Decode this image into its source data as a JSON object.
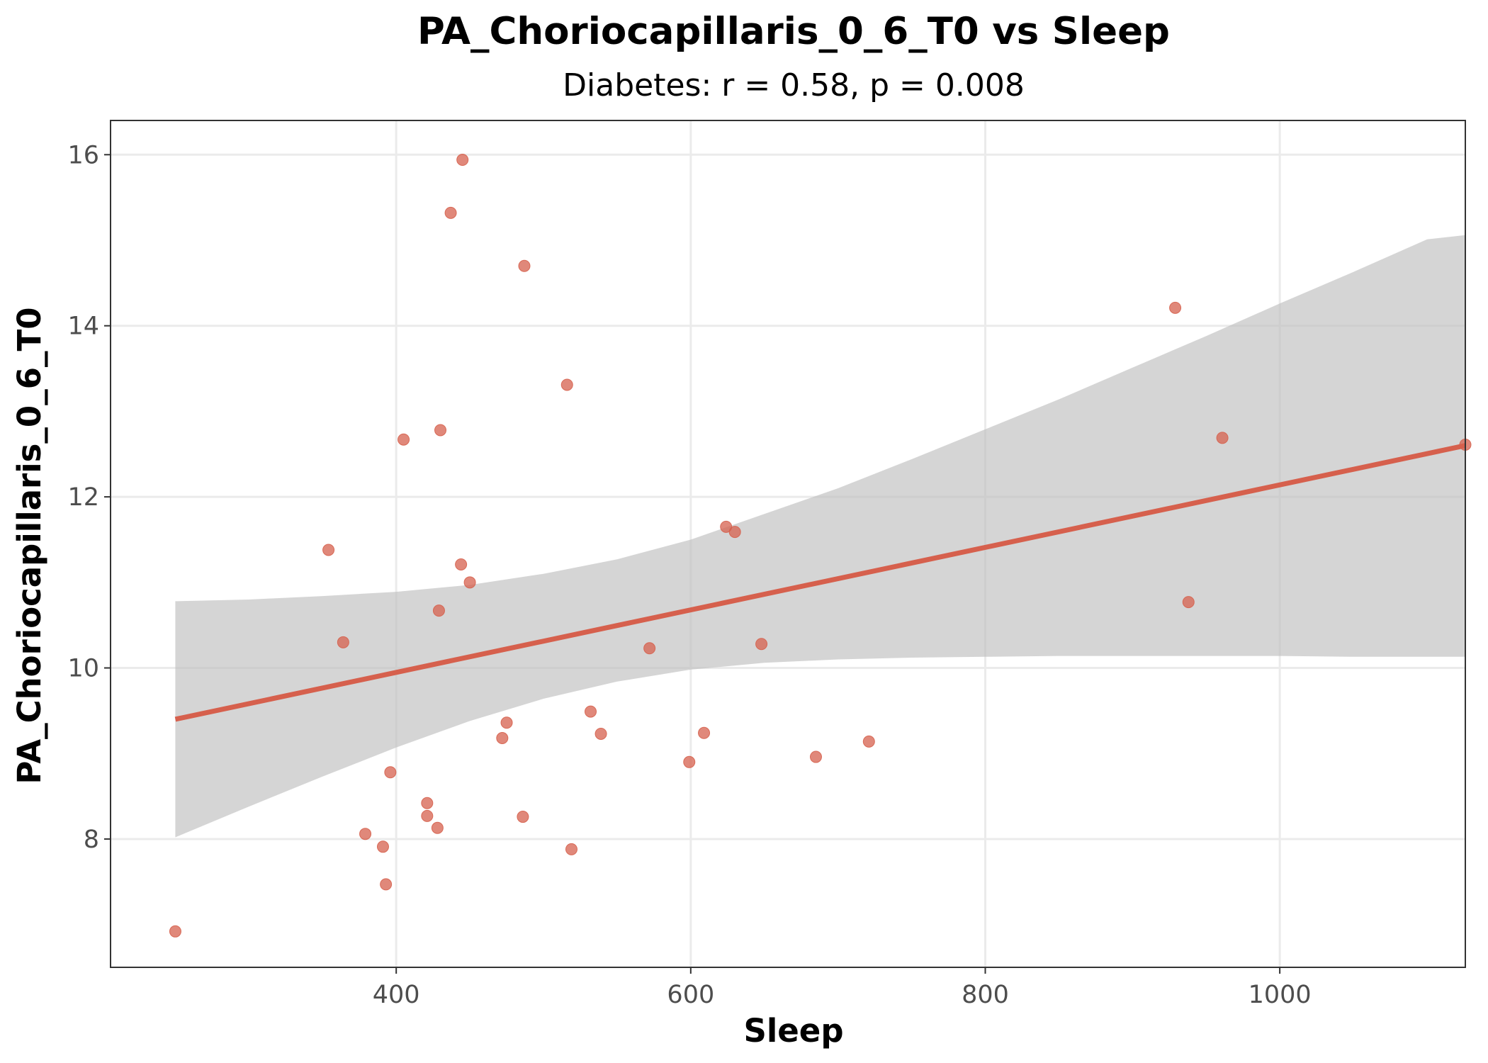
{
  "chart_data": {
    "type": "scatter",
    "title": "PA_Choriocapillaris_0_6_T0 vs Sleep",
    "subtitle": "Diabetes: r = 0.58, p = 0.008",
    "xlabel": "Sleep",
    "ylabel": "PA_Choriocapillaris_0_6_T0",
    "xlim": [
      206,
      1126
    ],
    "ylim": [
      6.5,
      16.4
    ],
    "x_ticks": [
      400,
      600,
      800,
      1000
    ],
    "x_tick_labels": [
      "400",
      "600",
      "800",
      "1000"
    ],
    "y_ticks": [
      8,
      10,
      12,
      14,
      16
    ],
    "y_tick_labels": [
      "8",
      "10",
      "12",
      "14",
      "16"
    ],
    "grid": true,
    "legend": "none",
    "colors": {
      "points": "#d6604d",
      "fit_line": "#d6604d",
      "confidence_band": "#bfbfbf"
    },
    "points": [
      {
        "x": 250,
        "y": 6.92
      },
      {
        "x": 354,
        "y": 11.38
      },
      {
        "x": 364,
        "y": 10.3
      },
      {
        "x": 379,
        "y": 8.06
      },
      {
        "x": 391,
        "y": 7.91
      },
      {
        "x": 393,
        "y": 7.47
      },
      {
        "x": 396,
        "y": 8.78
      },
      {
        "x": 405,
        "y": 12.67
      },
      {
        "x": 421,
        "y": 8.27
      },
      {
        "x": 421,
        "y": 8.42
      },
      {
        "x": 428,
        "y": 8.13
      },
      {
        "x": 429,
        "y": 10.67
      },
      {
        "x": 430,
        "y": 12.78
      },
      {
        "x": 437,
        "y": 15.32
      },
      {
        "x": 444,
        "y": 11.21
      },
      {
        "x": 445,
        "y": 15.94
      },
      {
        "x": 450,
        "y": 11.0
      },
      {
        "x": 472,
        "y": 9.18
      },
      {
        "x": 475,
        "y": 9.36
      },
      {
        "x": 486,
        "y": 8.26
      },
      {
        "x": 487,
        "y": 14.7
      },
      {
        "x": 516,
        "y": 13.31
      },
      {
        "x": 519,
        "y": 7.88
      },
      {
        "x": 532,
        "y": 9.49
      },
      {
        "x": 539,
        "y": 9.23
      },
      {
        "x": 572,
        "y": 10.23
      },
      {
        "x": 599,
        "y": 8.9
      },
      {
        "x": 609,
        "y": 9.24
      },
      {
        "x": 624,
        "y": 11.65
      },
      {
        "x": 630,
        "y": 11.59
      },
      {
        "x": 648,
        "y": 10.28
      },
      {
        "x": 685,
        "y": 8.96
      },
      {
        "x": 721,
        "y": 9.14
      },
      {
        "x": 929,
        "y": 14.21
      },
      {
        "x": 938,
        "y": 10.77
      },
      {
        "x": 961,
        "y": 12.69
      },
      {
        "x": 1126,
        "y": 12.61
      }
    ],
    "fit_line": {
      "x": [
        250,
        1126
      ],
      "y": [
        9.4,
        12.6
      ]
    },
    "confidence_band": {
      "x": [
        250,
        300,
        350,
        400,
        450,
        500,
        550,
        600,
        650,
        700,
        750,
        800,
        850,
        900,
        950,
        1000,
        1050,
        1100,
        1126
      ],
      "upper": [
        10.78,
        10.8,
        10.84,
        10.89,
        10.97,
        11.1,
        11.27,
        11.5,
        11.8,
        12.1,
        12.44,
        12.79,
        13.14,
        13.51,
        13.88,
        14.26,
        14.63,
        15.01,
        15.06
      ],
      "lower": [
        8.02,
        8.38,
        8.73,
        9.07,
        9.38,
        9.64,
        9.84,
        9.98,
        10.06,
        10.1,
        10.12,
        10.13,
        10.14,
        10.14,
        10.14,
        10.14,
        10.13,
        10.13,
        10.13
      ]
    }
  }
}
